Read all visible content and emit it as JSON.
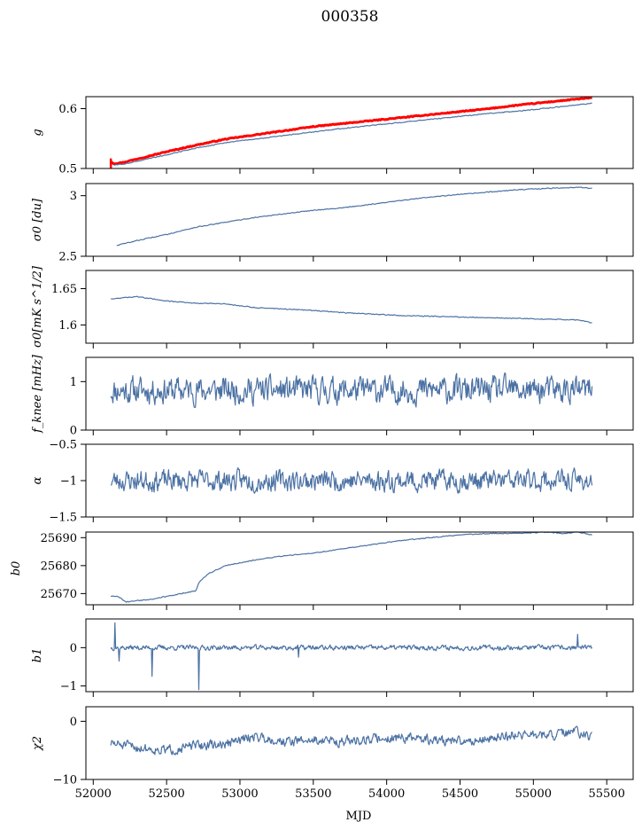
{
  "figure": {
    "title": "000358",
    "xlabel": "MJD",
    "xlim": [
      51950,
      55680
    ],
    "xticks": [
      52000,
      52500,
      53000,
      53500,
      54000,
      54500,
      55000,
      55500
    ],
    "series_color": "#4c72a4",
    "highlight_color": "#ff0000"
  },
  "chart_data": [
    {
      "type": "line",
      "panel": "g",
      "ylabel": "g",
      "ylim": [
        0.5,
        0.62
      ],
      "yticks": [
        0.5,
        0.6
      ],
      "series": [
        {
          "color": "#ff0000",
          "x": [
            52120,
            52140,
            52200,
            52300,
            52500,
            52700,
            52900,
            53100,
            53300,
            53500,
            53700,
            53900,
            54100,
            54300,
            54500,
            54700,
            54900,
            55100,
            55300,
            55400
          ],
          "y": [
            0.512,
            0.508,
            0.51,
            0.516,
            0.528,
            0.539,
            0.549,
            0.556,
            0.563,
            0.57,
            0.575,
            0.58,
            0.585,
            0.59,
            0.595,
            0.6,
            0.606,
            0.611,
            0.616,
            0.618
          ]
        },
        {
          "color": "#4c72a4",
          "x": [
            52140,
            52200,
            52300,
            52500,
            52700,
            52900,
            53100,
            53300,
            53500,
            53700,
            53900,
            54100,
            54300,
            54500,
            54700,
            54900,
            55100,
            55300,
            55400
          ],
          "y": [
            0.506,
            0.507,
            0.512,
            0.523,
            0.534,
            0.543,
            0.549,
            0.555,
            0.561,
            0.567,
            0.572,
            0.577,
            0.582,
            0.587,
            0.592,
            0.596,
            0.601,
            0.606,
            0.609
          ]
        }
      ]
    },
    {
      "type": "line",
      "panel": "sigma0_du",
      "ylabel": "σ0 [du]",
      "ylim": [
        2.5,
        3.1
      ],
      "yticks": [
        2.5,
        3.0
      ],
      "series": [
        {
          "color": "#4c72a4",
          "x": [
            52160,
            52300,
            52500,
            52700,
            52900,
            53100,
            53300,
            53500,
            53700,
            53900,
            54100,
            54300,
            54500,
            54700,
            54900,
            55100,
            55300,
            55400
          ],
          "y": [
            2.59,
            2.63,
            2.68,
            2.74,
            2.78,
            2.82,
            2.85,
            2.88,
            2.9,
            2.93,
            2.96,
            2.99,
            3.01,
            3.03,
            3.05,
            3.06,
            3.07,
            3.06
          ]
        }
      ]
    },
    {
      "type": "line",
      "panel": "sigma0_mK",
      "ylabel": "σ0[mK s^1/2]",
      "ylim": [
        1.575,
        1.675
      ],
      "yticks": [
        1.6,
        1.65
      ],
      "series": [
        {
          "color": "#4c72a4",
          "x": [
            52120,
            52300,
            52500,
            52700,
            52900,
            53100,
            53300,
            53500,
            53700,
            53900,
            54100,
            54300,
            54500,
            54700,
            54900,
            55100,
            55300,
            55400
          ],
          "y": [
            1.636,
            1.639,
            1.633,
            1.63,
            1.629,
            1.624,
            1.622,
            1.62,
            1.617,
            1.615,
            1.613,
            1.612,
            1.611,
            1.61,
            1.609,
            1.608,
            1.607,
            1.603
          ]
        }
      ]
    },
    {
      "type": "line",
      "panel": "fknee",
      "ylabel": "f_knee [mHz]",
      "ylim": [
        0,
        1.5
      ],
      "yticks": [
        0,
        1
      ],
      "series": [
        {
          "color": "#4c72a4",
          "noise": {
            "mean": 0.82,
            "amplitude": 0.42,
            "seed": 11
          },
          "x": [
            52120,
            55400
          ],
          "y": [
            0.82,
            0.82
          ]
        }
      ]
    },
    {
      "type": "line",
      "panel": "alpha",
      "ylabel": "α",
      "ylim": [
        -1.5,
        -0.5
      ],
      "yticks": [
        -1.5,
        -1.0,
        -0.5
      ],
      "series": [
        {
          "color": "#4c72a4",
          "noise": {
            "mean": -1.0,
            "amplitude": 0.22,
            "seed": 23
          },
          "x": [
            52120,
            55400
          ],
          "y": [
            -1.0,
            -1.0
          ]
        }
      ]
    },
    {
      "type": "line",
      "panel": "b0",
      "ylabel": "b0",
      "ylim": [
        25666,
        25692
      ],
      "yticks": [
        25670,
        25680,
        25690
      ],
      "series": [
        {
          "color": "#4c72a4",
          "x": [
            52120,
            52170,
            52220,
            52400,
            52600,
            52700,
            52720,
            52780,
            52900,
            53100,
            53300,
            53500,
            53700,
            53900,
            54100,
            54300,
            54500,
            54700,
            54900,
            55100,
            55200,
            55300,
            55400
          ],
          "y": [
            25669,
            25669,
            25667,
            25668,
            25670,
            25671,
            25674,
            25677,
            25680,
            25682,
            25683.5,
            25684.5,
            25686,
            25687.5,
            25689,
            25690,
            25691,
            25691.5,
            25691.5,
            25692,
            25691.5,
            25692,
            25691
          ]
        }
      ]
    },
    {
      "type": "line",
      "panel": "b1",
      "ylabel": "b1",
      "ylim": [
        -1.15,
        0.75
      ],
      "yticks": [
        -1,
        0
      ],
      "series": [
        {
          "color": "#4c72a4",
          "noise": {
            "mean": 0.0,
            "amplitude": 0.1,
            "seed": 37
          },
          "spikes": [
            [
              52150,
              0.65
            ],
            [
              52175,
              -0.35
            ],
            [
              52400,
              -0.75
            ],
            [
              52720,
              -1.1
            ],
            [
              53400,
              -0.25
            ],
            [
              55300,
              0.35
            ]
          ],
          "x": [
            52120,
            55400
          ],
          "y": [
            0.0,
            0.0
          ]
        }
      ]
    },
    {
      "type": "line",
      "panel": "chi2",
      "ylabel": "χ2",
      "ylim": [
        -10,
        2.5
      ],
      "yticks": [
        -10,
        0
      ],
      "series": [
        {
          "color": "#4c72a4",
          "noise": {
            "amplitude": 1.3,
            "seed": 51
          },
          "x": [
            52120,
            52300,
            52500,
            52700,
            52900,
            53100,
            53300,
            53500,
            53700,
            53900,
            54100,
            54300,
            54500,
            54700,
            54900,
            55100,
            55300,
            55400
          ],
          "y": [
            -3.8,
            -4.5,
            -5.0,
            -4.2,
            -4.0,
            -2.5,
            -3.5,
            -3.2,
            -3.5,
            -3.0,
            -2.8,
            -3.2,
            -3.5,
            -3.0,
            -2.2,
            -2.5,
            -1.8,
            -3.0
          ]
        }
      ]
    }
  ]
}
